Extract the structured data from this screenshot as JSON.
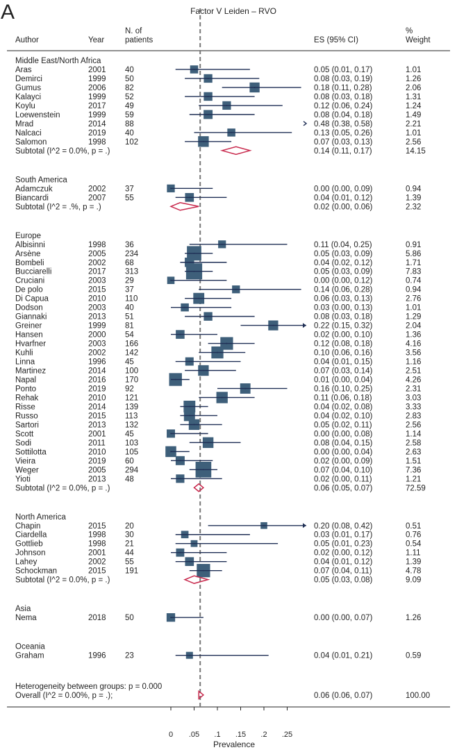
{
  "chart_data": {
    "type": "forest",
    "panel_label": "A",
    "title": "Factor V Leiden – RVO",
    "xlabel": "Prevalence",
    "x_ticks": [
      0,
      0.05,
      0.1,
      0.15,
      0.2,
      0.25
    ],
    "x_tick_labels": [
      "0",
      ".05",
      ".1",
      ".15",
      ".2",
      ".25"
    ],
    "xlim": [
      0,
      0.25
    ],
    "reference_line": 0.063,
    "headers": {
      "author": "Author",
      "year": "Year",
      "n_patients": "N. of\npatients",
      "es": "ES (95% CI)",
      "weight": "%\nWeight"
    },
    "groups": [
      {
        "name": "Middle East/North Africa",
        "studies": [
          {
            "author": "Aras",
            "year": "2001",
            "n": "40",
            "es": 0.05,
            "lo": 0.01,
            "hi": 0.17,
            "es_text": "0.05 (0.01, 0.17)",
            "weight": "1.01"
          },
          {
            "author": "Demirci",
            "year": "1999",
            "n": "50",
            "es": 0.08,
            "lo": 0.03,
            "hi": 0.19,
            "es_text": "0.08 (0.03, 0.19)",
            "weight": "1.26"
          },
          {
            "author": "Gumus",
            "year": "2006",
            "n": "82",
            "es": 0.18,
            "lo": 0.11,
            "hi": 0.28,
            "es_text": "0.18 (0.11, 0.28)",
            "weight": "2.06"
          },
          {
            "author": "Kalayci",
            "year": "1999",
            "n": "52",
            "es": 0.08,
            "lo": 0.03,
            "hi": 0.18,
            "es_text": "0.08 (0.03, 0.18)",
            "weight": "1.31"
          },
          {
            "author": "Koylu",
            "year": "2017",
            "n": "49",
            "es": 0.12,
            "lo": 0.06,
            "hi": 0.24,
            "es_text": "0.12 (0.06, 0.24)",
            "weight": "1.24"
          },
          {
            "author": "Loewenstein",
            "year": "1999",
            "n": "59",
            "es": 0.08,
            "lo": 0.04,
            "hi": 0.18,
            "es_text": "0.08 (0.04, 0.18)",
            "weight": "1.49"
          },
          {
            "author": "Mrad",
            "year": "2014",
            "n": "88",
            "es": 0.48,
            "lo": 0.38,
            "hi": 0.58,
            "es_text": "0.48 (0.38, 0.58)",
            "weight": "2.21"
          },
          {
            "author": "Nalcaci",
            "year": "2019",
            "n": "40",
            "es": 0.13,
            "lo": 0.05,
            "hi": 0.26,
            "es_text": "0.13 (0.05, 0.26)",
            "weight": "1.01"
          },
          {
            "author": "Salomon",
            "year": "1998",
            "n": "102",
            "es": 0.07,
            "lo": 0.03,
            "hi": 0.13,
            "es_text": "0.07 (0.03, 0.13)",
            "weight": "2.56"
          }
        ],
        "subtotal": {
          "label": "Subtotal  (I^2 = 0.0%, p = .)",
          "es": 0.14,
          "lo": 0.11,
          "hi": 0.17,
          "es_text": "0.14 (0.11, 0.17)",
          "weight": "14.15"
        }
      },
      {
        "name": "South America",
        "studies": [
          {
            "author": "Adamczuk",
            "year": "2002",
            "n": "37",
            "es": 0.0,
            "lo": 0.0,
            "hi": 0.09,
            "es_text": "0.00 (0.00, 0.09)",
            "weight": "0.94"
          },
          {
            "author": "Biancardi",
            "year": "2007",
            "n": "55",
            "es": 0.04,
            "lo": 0.01,
            "hi": 0.12,
            "es_text": "0.04 (0.01, 0.12)",
            "weight": "1.39"
          }
        ],
        "subtotal": {
          "label": "Subtotal  (I^2 = .%, p = .)",
          "es": 0.02,
          "lo": 0.0,
          "hi": 0.06,
          "es_text": "0.02 (0.00, 0.06)",
          "weight": "2.32"
        }
      },
      {
        "name": "Europe",
        "studies": [
          {
            "author": "Albisinni",
            "year": "1998",
            "n": "36",
            "es": 0.11,
            "lo": 0.04,
            "hi": 0.25,
            "es_text": "0.11 (0.04, 0.25)",
            "weight": "0.91"
          },
          {
            "author": "Arsène",
            "year": "2005",
            "n": "234",
            "es": 0.05,
            "lo": 0.03,
            "hi": 0.09,
            "es_text": "0.05 (0.03, 0.09)",
            "weight": "5.86"
          },
          {
            "author": "Bombeli",
            "year": "2002",
            "n": "68",
            "es": 0.04,
            "lo": 0.02,
            "hi": 0.12,
            "es_text": "0.04 (0.02, 0.12)",
            "weight": "1.71"
          },
          {
            "author": "Bucciarelli",
            "year": "2017",
            "n": "313",
            "es": 0.05,
            "lo": 0.03,
            "hi": 0.09,
            "es_text": "0.05 (0.03, 0.09)",
            "weight": "7.83"
          },
          {
            "author": "Cruciani",
            "year": "2003",
            "n": "29",
            "es": 0.0,
            "lo": 0.0,
            "hi": 0.12,
            "es_text": "0.00 (0.00, 0.12)",
            "weight": "0.74"
          },
          {
            "author": "De polo",
            "year": "2015",
            "n": "37",
            "es": 0.14,
            "lo": 0.06,
            "hi": 0.28,
            "es_text": "0.14 (0.06, 0.28)",
            "weight": "0.94"
          },
          {
            "author": "Di Capua",
            "year": "2010",
            "n": "110",
            "es": 0.06,
            "lo": 0.03,
            "hi": 0.13,
            "es_text": "0.06 (0.03, 0.13)",
            "weight": "2.76"
          },
          {
            "author": "Dodson",
            "year": "2003",
            "n": "40",
            "es": 0.03,
            "lo": 0.0,
            "hi": 0.13,
            "es_text": "0.03 (0.00, 0.13)",
            "weight": "1.01"
          },
          {
            "author": "Giannaki",
            "year": "2013",
            "n": "51",
            "es": 0.08,
            "lo": 0.03,
            "hi": 0.18,
            "es_text": "0.08 (0.03, 0.18)",
            "weight": "1.29"
          },
          {
            "author": "Greiner",
            "year": "1999",
            "n": "81",
            "es": 0.22,
            "lo": 0.15,
            "hi": 0.32,
            "es_text": "0.22 (0.15, 0.32)",
            "weight": "2.04"
          },
          {
            "author": "Hansen",
            "year": "2000",
            "n": "54",
            "es": 0.02,
            "lo": 0.0,
            "hi": 0.1,
            "es_text": "0.02 (0.00, 0.10)",
            "weight": "1.36"
          },
          {
            "author": "Hvarfner",
            "year": "2003",
            "n": "166",
            "es": 0.12,
            "lo": 0.08,
            "hi": 0.18,
            "es_text": "0.12 (0.08, 0.18)",
            "weight": "4.16"
          },
          {
            "author": "Kuhli",
            "year": "2002",
            "n": "142",
            "es": 0.1,
            "lo": 0.06,
            "hi": 0.16,
            "es_text": "0.10 (0.06, 0.16)",
            "weight": "3.56"
          },
          {
            "author": "Linna",
            "year": "1996",
            "n": "45",
            "es": 0.04,
            "lo": 0.01,
            "hi": 0.15,
            "es_text": "0.04 (0.01, 0.15)",
            "weight": "1.16"
          },
          {
            "author": "Martinez",
            "year": "2014",
            "n": "100",
            "es": 0.07,
            "lo": 0.03,
            "hi": 0.14,
            "es_text": "0.07 (0.03, 0.14)",
            "weight": "2.51"
          },
          {
            "author": "Napal",
            "year": "2016",
            "n": "170",
            "es": 0.01,
            "lo": 0.0,
            "hi": 0.04,
            "es_text": "0.01 (0.00, 0.04)",
            "weight": "4.26"
          },
          {
            "author": "Ponto",
            "year": "2019",
            "n": "92",
            "es": 0.16,
            "lo": 0.1,
            "hi": 0.25,
            "es_text": "0.16 (0.10, 0.25)",
            "weight": "2.31"
          },
          {
            "author": "Rehak",
            "year": "2010",
            "n": "121",
            "es": 0.11,
            "lo": 0.06,
            "hi": 0.18,
            "es_text": "0.11 (0.06, 0.18)",
            "weight": "3.03"
          },
          {
            "author": "Risse",
            "year": "2014",
            "n": "139",
            "es": 0.04,
            "lo": 0.02,
            "hi": 0.08,
            "es_text": "0.04 (0.02, 0.08)",
            "weight": "3.33"
          },
          {
            "author": "Russo",
            "year": "2015",
            "n": "113",
            "es": 0.04,
            "lo": 0.02,
            "hi": 0.1,
            "es_text": "0.04 (0.02, 0.10)",
            "weight": "2.83"
          },
          {
            "author": "Sartori",
            "year": "2013",
            "n": "132",
            "es": 0.05,
            "lo": 0.02,
            "hi": 0.11,
            "es_text": "0.05 (0.02, 0.11)",
            "weight": "2.56"
          },
          {
            "author": "Scott",
            "year": "2001",
            "n": "45",
            "es": 0.0,
            "lo": 0.0,
            "hi": 0.08,
            "es_text": "0.00 (0.00, 0.08)",
            "weight": "1.14"
          },
          {
            "author": "Sodi",
            "year": "2011",
            "n": "103",
            "es": 0.08,
            "lo": 0.04,
            "hi": 0.15,
            "es_text": "0.08 (0.04, 0.15)",
            "weight": "2.58"
          },
          {
            "author": "Sottilotta",
            "year": "2010",
            "n": "105",
            "es": 0.0,
            "lo": 0.0,
            "hi": 0.04,
            "es_text": "0.00 (0.00, 0.04)",
            "weight": "2.63"
          },
          {
            "author": "Vieira",
            "year": "2019",
            "n": "60",
            "es": 0.02,
            "lo": 0.0,
            "hi": 0.09,
            "es_text": "0.02 (0.00, 0.09)",
            "weight": "1.51"
          },
          {
            "author": "Weger",
            "year": "2005",
            "n": "294",
            "es": 0.07,
            "lo": 0.04,
            "hi": 0.1,
            "es_text": "0.07 (0.04, 0.10)",
            "weight": "7.36"
          },
          {
            "author": "Yioti",
            "year": "2013",
            "n": "48",
            "es": 0.02,
            "lo": 0.0,
            "hi": 0.11,
            "es_text": "0.02 (0.00, 0.11)",
            "weight": "1.21"
          }
        ],
        "subtotal": {
          "label": "Subtotal  (I^2 = 0.0%, p = .)",
          "es": 0.06,
          "lo": 0.05,
          "hi": 0.07,
          "es_text": "0.06 (0.05, 0.07)",
          "weight": "72.59"
        }
      },
      {
        "name": "North America",
        "studies": [
          {
            "author": "Chapin",
            "year": "2015",
            "n": "20",
            "es": 0.2,
            "lo": 0.08,
            "hi": 0.42,
            "es_text": "0.20 (0.08, 0.42)",
            "weight": "0.51"
          },
          {
            "author": "Ciardella",
            "year": "1998",
            "n": "30",
            "es": 0.03,
            "lo": 0.01,
            "hi": 0.17,
            "es_text": "0.03 (0.01, 0.17)",
            "weight": "0.76"
          },
          {
            "author": "Gottlieb",
            "year": "1998",
            "n": "21",
            "es": 0.05,
            "lo": 0.01,
            "hi": 0.23,
            "es_text": "0.05 (0.01, 0.23)",
            "weight": "0.54"
          },
          {
            "author": "Johnson",
            "year": "2001",
            "n": "44",
            "es": 0.02,
            "lo": 0.0,
            "hi": 0.12,
            "es_text": "0.02 (0.00, 0.12)",
            "weight": "1.11"
          },
          {
            "author": "Lahey",
            "year": "2002",
            "n": "55",
            "es": 0.04,
            "lo": 0.01,
            "hi": 0.12,
            "es_text": "0.04 (0.01, 0.12)",
            "weight": "1.39"
          },
          {
            "author": "Schockman",
            "year": "2015",
            "n": "191",
            "es": 0.07,
            "lo": 0.04,
            "hi": 0.11,
            "es_text": "0.07 (0.04, 0.11)",
            "weight": "4.78"
          }
        ],
        "subtotal": {
          "label": "Subtotal  (I^2 = 0.0%, p = .)",
          "es": 0.05,
          "lo": 0.03,
          "hi": 0.08,
          "es_text": "0.05 (0.03, 0.08)",
          "weight": "9.09"
        }
      },
      {
        "name": "Asia",
        "studies": [
          {
            "author": "Nema",
            "year": "2018",
            "n": "50",
            "es": 0.0,
            "lo": 0.0,
            "hi": 0.07,
            "es_text": "0.00 (0.00, 0.07)",
            "weight": "1.26"
          }
        ],
        "subtotal": null
      },
      {
        "name": "Oceania",
        "studies": [
          {
            "author": "Graham",
            "year": "1996",
            "n": "23",
            "es": 0.04,
            "lo": 0.01,
            "hi": 0.21,
            "es_text": "0.04 (0.01, 0.21)",
            "weight": "0.59"
          }
        ],
        "subtotal": null
      }
    ],
    "heterogeneity_text": "Heterogeneity between groups: p = 0.000",
    "overall": {
      "label": "Overall  (I^2 = 0.00%, p = .);",
      "es": 0.06,
      "lo": 0.06,
      "hi": 0.07,
      "es_text": "0.06 (0.06, 0.07)",
      "weight": "100.00"
    },
    "colors": {
      "study_marker": "#3e5f7a",
      "ci_line": "#1f2f55",
      "diamond": "#c8284c",
      "reference_line": "#777777",
      "text": "#222222"
    }
  }
}
